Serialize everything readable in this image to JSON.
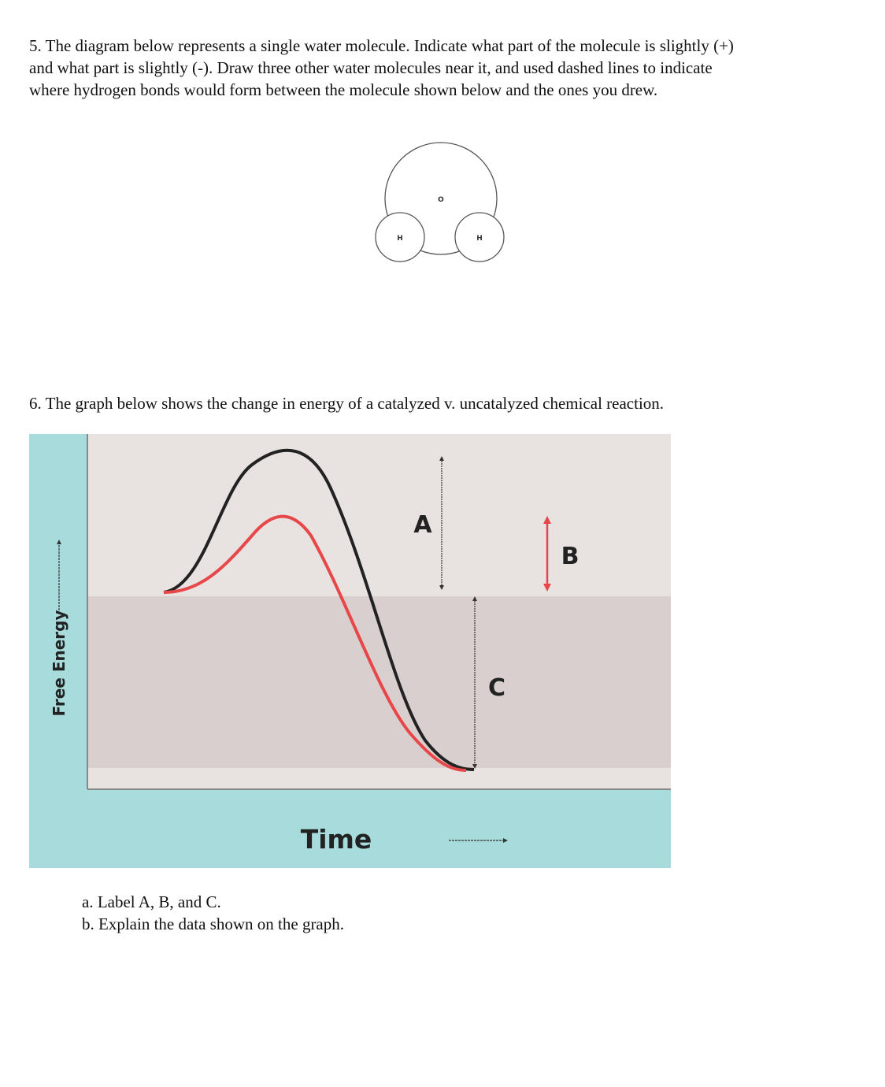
{
  "question5": {
    "lines": [
      "5. The diagram below represents a single water molecule. Indicate what part of the molecule is slightly (+)",
      "and what part is slightly (-). Draw three other water molecules near it, and used dashed lines to indicate",
      "where hydrogen bonds would form between the molecule shown below and the ones you drew."
    ],
    "molecule": {
      "oxygen": "O",
      "hydrogen_left": "H",
      "hydrogen_right": "H"
    }
  },
  "question6": {
    "text": "6. The graph below shows the change in energy of a catalyzed v. uncatalyzed chemical reaction.",
    "graph": {
      "y_axis": "Free Energy",
      "x_axis": "Time",
      "label_a": "A",
      "label_b": "B",
      "label_c": "C"
    },
    "items": [
      "a. Label A, B, and C.",
      "b. Explain the data shown on the graph."
    ]
  }
}
